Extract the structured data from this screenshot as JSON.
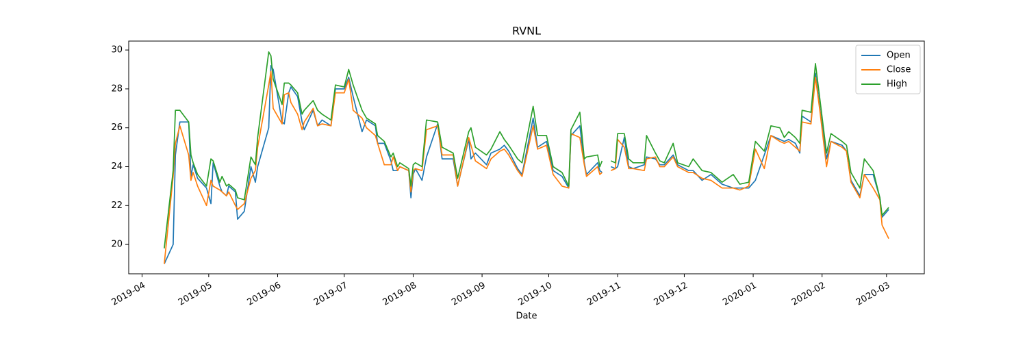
{
  "chart_data": {
    "type": "line",
    "title": "RVNL",
    "x_label": "Date",
    "x": [
      "2019-04-11",
      "2019-04-15",
      "2019-04-16",
      "2019-04-18",
      "2019-04-22",
      "2019-04-23",
      "2019-04-24",
      "2019-04-26",
      "2019-04-30",
      "2019-05-02",
      "2019-05-03",
      "2019-05-06",
      "2019-05-07",
      "2019-05-09",
      "2019-05-10",
      "2019-05-13",
      "2019-05-14",
      "2019-05-17",
      "2019-05-20",
      "2019-05-22",
      "2019-05-23",
      "2019-05-28",
      "2019-05-29",
      "2019-05-30",
      "2019-06-03",
      "2019-06-04",
      "2019-06-06",
      "2019-06-07",
      "2019-06-10",
      "2019-06-12",
      "2019-06-13",
      "2019-06-17",
      "2019-06-19",
      "2019-06-21",
      "2019-06-25",
      "2019-06-27",
      "2019-07-01",
      "2019-07-03",
      "2019-07-05",
      "2019-07-09",
      "2019-07-11",
      "2019-07-15",
      "2019-07-16",
      "2019-07-19",
      "2019-07-22",
      "2019-07-23",
      "2019-07-25",
      "2019-07-26",
      "2019-07-30",
      "2019-07-31",
      "2019-08-01",
      "2019-08-02",
      "2019-08-05",
      "2019-08-07",
      "2019-08-12",
      "2019-08-14",
      "2019-08-19",
      "2019-08-21",
      "2019-08-26",
      "2019-08-27",
      "2019-08-29",
      "2019-09-03",
      "2019-09-05",
      "2019-09-09",
      "2019-09-11",
      "2019-09-13",
      "2019-09-17",
      "2019-09-19",
      "2019-09-24",
      "2019-09-26",
      "2019-09-30",
      "2019-10-03",
      "2019-10-07",
      "2019-10-10",
      "2019-10-11",
      "2019-10-15",
      "2019-10-17",
      "2019-10-18",
      "2019-10-23",
      "2019-10-24",
      "2019-10-25",
      "2019-10-28",
      "2019-10-29",
      "2019-10-31",
      "2019-11-01",
      "2019-11-04",
      "2019-11-06",
      "2019-11-08",
      "2019-11-13",
      "2019-11-14",
      "2019-11-18",
      "2019-11-20",
      "2019-11-22",
      "2019-11-26",
      "2019-11-28",
      "2019-12-03",
      "2019-12-05",
      "2019-12-09",
      "2019-12-13",
      "2019-12-18",
      "2019-12-23",
      "2019-12-26",
      "2019-12-30",
      "2020-01-02",
      "2020-01-06",
      "2020-01-09",
      "2020-01-13",
      "2020-01-15",
      "2020-01-17",
      "2020-01-20",
      "2020-01-22",
      "2020-01-23",
      "2020-01-27",
      "2020-01-29",
      "2020-01-31",
      "2020-02-03",
      "2020-02-05",
      "2020-02-10",
      "2020-02-12",
      "2020-02-14",
      "2020-02-18",
      "2020-02-20",
      "2020-02-24",
      "2020-02-27",
      "2020-02-28",
      "2020-03-02"
    ],
    "series": [
      {
        "name": "Open",
        "color": "#1f77b4",
        "values": [
          19.0,
          20.0,
          24.6,
          26.3,
          26.3,
          23.5,
          24.1,
          23.4,
          22.9,
          22.1,
          24.2,
          23.0,
          22.7,
          22.5,
          23.0,
          22.7,
          21.3,
          21.7,
          24.0,
          23.2,
          24.0,
          26.0,
          29.2,
          29.0,
          26.3,
          26.2,
          27.8,
          28.1,
          27.6,
          26.3,
          25.9,
          26.9,
          26.1,
          26.4,
          26.1,
          28.0,
          28.0,
          28.6,
          27.6,
          25.8,
          26.4,
          26.1,
          25.2,
          25.2,
          24.3,
          23.8,
          23.8,
          24.0,
          23.8,
          22.4,
          23.6,
          23.9,
          23.3,
          24.5,
          26.2,
          24.4,
          24.4,
          23.0,
          25.4,
          24.4,
          24.7,
          24.1,
          24.7,
          24.9,
          25.1,
          24.8,
          23.9,
          23.6,
          26.5,
          25.0,
          25.3,
          23.8,
          23.5,
          22.9,
          25.6,
          26.1,
          24.2,
          23.6,
          24.2,
          23.8,
          23.7,
          null,
          24.0,
          23.9,
          24.0,
          25.5,
          24.0,
          23.9,
          24.1,
          24.5,
          24.4,
          24.1,
          24.1,
          24.6,
          24.1,
          23.8,
          23.8,
          23.3,
          23.6,
          23.1,
          22.9,
          22.9,
          22.9,
          23.3,
          24.6,
          25.6,
          25.4,
          25.3,
          25.4,
          25.2,
          24.7,
          26.6,
          26.3,
          28.8,
          27.0,
          24.4,
          25.3,
          25.1,
          24.8,
          23.3,
          22.5,
          23.6,
          23.6,
          22.4,
          21.4,
          21.8
        ]
      },
      {
        "name": "Close",
        "color": "#ff7f0e",
        "values": [
          19.0,
          23.5,
          25.2,
          26.1,
          24.6,
          23.3,
          23.7,
          23.0,
          22.0,
          23.3,
          23.0,
          22.8,
          22.7,
          22.5,
          22.7,
          22.0,
          21.8,
          22.1,
          23.4,
          23.8,
          25.0,
          28.2,
          28.9,
          27.0,
          26.2,
          27.7,
          27.8,
          27.3,
          26.7,
          25.9,
          26.3,
          27.0,
          26.1,
          26.2,
          26.1,
          27.8,
          27.8,
          28.5,
          26.9,
          26.5,
          26.0,
          25.6,
          25.2,
          24.1,
          24.1,
          24.5,
          23.8,
          24.0,
          23.8,
          22.7,
          23.8,
          23.9,
          23.8,
          25.9,
          26.1,
          24.6,
          24.6,
          23.0,
          25.5,
          25.1,
          24.3,
          23.9,
          24.4,
          24.8,
          24.9,
          24.6,
          23.8,
          23.5,
          26.1,
          24.9,
          25.1,
          23.6,
          23.0,
          22.9,
          25.7,
          25.5,
          24.1,
          23.5,
          24.0,
          23.6,
          23.7,
          null,
          23.8,
          23.9,
          25.4,
          25.0,
          23.9,
          23.9,
          23.8,
          24.4,
          24.5,
          24.0,
          24.0,
          24.5,
          24.0,
          23.7,
          23.7,
          23.4,
          23.3,
          22.9,
          22.9,
          22.8,
          23.0,
          24.9,
          23.9,
          25.6,
          25.3,
          25.2,
          25.3,
          25.0,
          24.8,
          26.3,
          26.2,
          28.6,
          26.9,
          24.0,
          25.3,
          25.0,
          24.8,
          23.2,
          22.4,
          23.6,
          22.9,
          22.3,
          21.0,
          20.3
        ]
      },
      {
        "name": "High",
        "color": "#2ca02c",
        "values": [
          19.8,
          23.8,
          26.9,
          26.9,
          26.3,
          24.6,
          24.2,
          23.6,
          23.0,
          24.4,
          24.3,
          23.2,
          23.5,
          23.0,
          23.1,
          22.8,
          22.4,
          22.3,
          24.5,
          24.1,
          25.5,
          29.9,
          29.7,
          28.5,
          27.2,
          28.3,
          28.3,
          28.2,
          27.8,
          26.7,
          26.9,
          27.4,
          26.9,
          26.7,
          26.4,
          28.2,
          28.1,
          29.0,
          28.2,
          26.9,
          26.5,
          26.2,
          25.6,
          25.3,
          24.5,
          24.7,
          24.0,
          24.2,
          23.9,
          23.0,
          24.1,
          24.2,
          24.0,
          26.4,
          26.3,
          25.0,
          24.7,
          23.4,
          25.8,
          26.0,
          25.0,
          24.6,
          24.9,
          25.8,
          25.4,
          25.1,
          24.4,
          24.2,
          27.1,
          25.6,
          25.6,
          24.0,
          23.7,
          23.0,
          25.9,
          26.8,
          24.4,
          24.5,
          24.6,
          24.0,
          24.3,
          null,
          24.3,
          24.2,
          25.7,
          25.7,
          24.4,
          24.2,
          24.2,
          25.6,
          24.7,
          24.3,
          24.2,
          25.2,
          24.2,
          24.0,
          24.4,
          23.8,
          23.7,
          23.2,
          23.6,
          23.1,
          23.2,
          25.3,
          24.8,
          26.1,
          26.0,
          25.5,
          25.8,
          25.5,
          25.2,
          26.9,
          26.8,
          29.3,
          27.5,
          24.7,
          25.7,
          25.3,
          25.1,
          23.7,
          22.9,
          24.4,
          23.8,
          22.4,
          21.5,
          21.9
        ]
      }
    ],
    "xlim": [
      "2019-03-26",
      "2020-03-18"
    ],
    "xticks": [
      {
        "value": "2019-04-01",
        "label": "2019-04"
      },
      {
        "value": "2019-05-01",
        "label": "2019-05"
      },
      {
        "value": "2019-06-01",
        "label": "2019-06"
      },
      {
        "value": "2019-07-01",
        "label": "2019-07"
      },
      {
        "value": "2019-08-01",
        "label": "2019-08"
      },
      {
        "value": "2019-09-01",
        "label": "2019-09"
      },
      {
        "value": "2019-10-01",
        "label": "2019-10"
      },
      {
        "value": "2019-11-01",
        "label": "2019-11"
      },
      {
        "value": "2019-12-01",
        "label": "2019-12"
      },
      {
        "value": "2020-01-01",
        "label": "2020-01"
      },
      {
        "value": "2020-02-01",
        "label": "2020-02"
      },
      {
        "value": "2020-03-01",
        "label": "2020-03"
      }
    ],
    "ylim": [
      18.49,
      30.46
    ],
    "yticks": [
      20,
      22,
      24,
      26,
      28,
      30
    ],
    "legend": "upper right"
  }
}
